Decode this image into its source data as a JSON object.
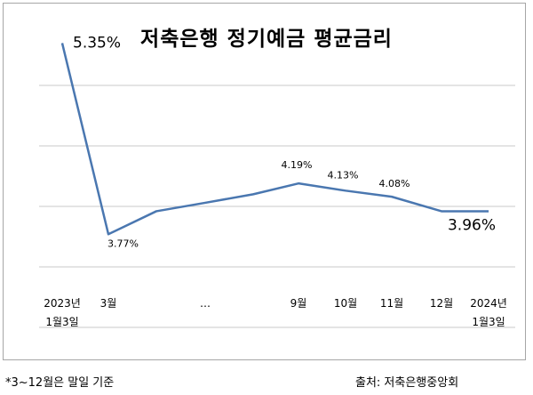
{
  "chart_data": {
    "type": "line",
    "title": "저축은행 정기예금 평균금리",
    "categories": [
      "2023년\n1월3일",
      "3월",
      "",
      "…",
      "",
      "9월",
      "10월",
      "11월",
      "12월",
      "2024년\n1월3일"
    ],
    "series": [
      {
        "values": [
          5.35,
          3.77,
          3.96,
          4.03,
          4.1,
          4.19,
          4.13,
          4.08,
          3.96,
          3.96
        ]
      }
    ],
    "data_labels": [
      {
        "index": 0,
        "text": "5.35%",
        "size": "big"
      },
      {
        "index": 1,
        "text": "3.77%",
        "size": "small"
      },
      {
        "index": 5,
        "text": "4.19%",
        "size": "small"
      },
      {
        "index": 6,
        "text": "4.13%",
        "size": "small"
      },
      {
        "index": 7,
        "text": "4.08%",
        "size": "small"
      },
      {
        "index": 9,
        "text": "3.96%",
        "size": "big"
      }
    ],
    "ylim": [
      3.0,
      5.5
    ],
    "gridlines": [
      3.0,
      3.5,
      4.0,
      4.5,
      5.0
    ],
    "grid": true,
    "line_color": "#4a77b0",
    "grid_color": "#c8c8c8"
  },
  "footnote": "*3~12월은 말일 기준",
  "source": "출처: 저축은행중앙회"
}
